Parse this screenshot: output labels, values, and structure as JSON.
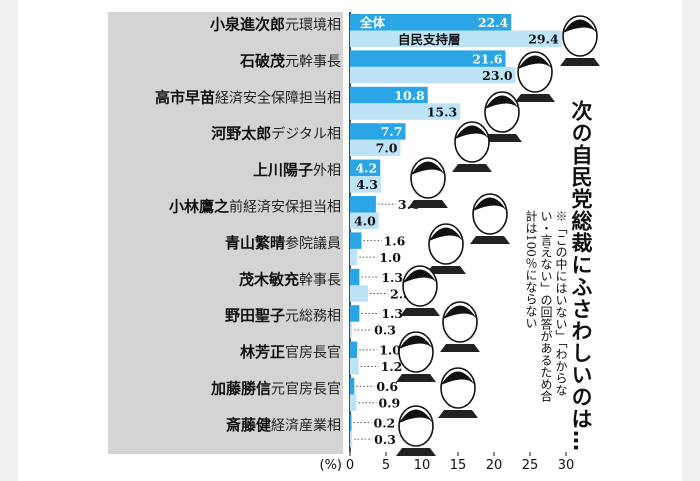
{
  "chart_data": {
    "type": "bar",
    "orientation": "horizontal",
    "title": "次の自民党総裁にふさわしいのは…",
    "note": "※「この中にはいない」「わからない・言えない」の回答があるため合計は100％にならない",
    "xlabel": "(%)",
    "xlim": [
      0,
      30
    ],
    "xticks": [
      "0",
      "5",
      "10",
      "15",
      "20",
      "25",
      "30"
    ],
    "categories": [
      {
        "name": "小泉進次郎",
        "title": "元環境相"
      },
      {
        "name": "石破茂",
        "title": "元幹事長"
      },
      {
        "name": "高市早苗",
        "title": "経済安全保障担当相"
      },
      {
        "name": "河野太郎",
        "title": "デジタル相"
      },
      {
        "name": "上川陽子",
        "title": "外相"
      },
      {
        "name": "小林鷹之",
        "title": "前経済安保担当相"
      },
      {
        "name": "青山繁晴",
        "title": "参院議員"
      },
      {
        "name": "茂木敏充",
        "title": "幹事長"
      },
      {
        "name": "野田聖子",
        "title": "元総務相"
      },
      {
        "name": "林芳正",
        "title": "官房長官"
      },
      {
        "name": "加藤勝信",
        "title": "元官房長官"
      },
      {
        "name": "斎藤健",
        "title": "経済産業相"
      }
    ],
    "series": [
      {
        "name": "全体",
        "color": "#2aa5e6",
        "values": [
          22.4,
          21.6,
          10.8,
          7.7,
          4.2,
          3.6,
          1.6,
          1.3,
          1.3,
          1.0,
          0.6,
          0.2
        ],
        "labels": [
          "22.4",
          "21.6",
          "10.8",
          "7.7",
          "4.2",
          "3.6",
          "1.6",
          "1.3",
          "1.3",
          "1.0",
          "0.6",
          "0.2"
        ]
      },
      {
        "name": "自民支持層",
        "color": "#bde3f6",
        "values": [
          29.4,
          23.0,
          15.3,
          7.0,
          4.3,
          4.0,
          1.0,
          2.5,
          0.3,
          1.2,
          0.9,
          0.3
        ],
        "labels": [
          "29.4",
          "23.0",
          "15.3",
          "7.0",
          "4.3",
          "4.0",
          "1.0",
          "2.5",
          "0.3",
          "1.2",
          "0.9",
          "0.3"
        ]
      }
    ]
  }
}
